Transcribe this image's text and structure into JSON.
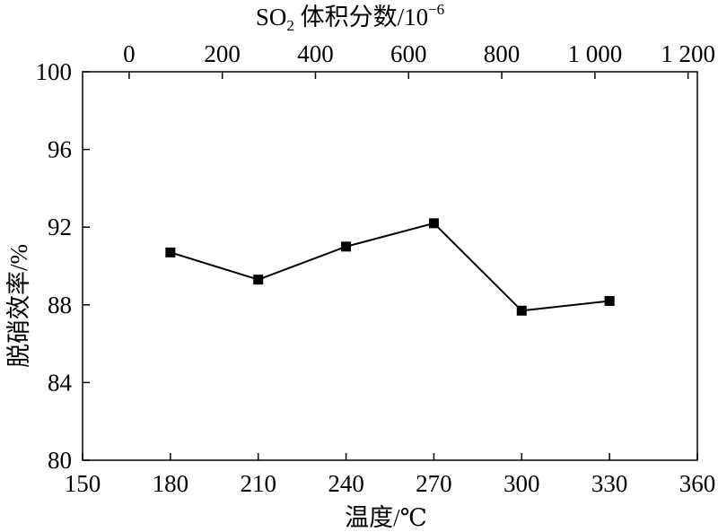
{
  "chart_data": {
    "type": "line",
    "xlabel": "温度/℃",
    "ylabel": "脱硝效率/%",
    "x2label_main": "SO",
    "x2label_sub": "2",
    "x2label_rest": " 体积分数/10",
    "x2label_sup": "−6",
    "xlim": [
      150,
      360
    ],
    "ylim": [
      80,
      100
    ],
    "x2lim": [
      -100,
      1220
    ],
    "xticks": [
      150,
      180,
      210,
      240,
      270,
      300,
      330,
      360
    ],
    "yticks": [
      80,
      84,
      88,
      92,
      96,
      100
    ],
    "x2ticks": [
      {
        "value": 0,
        "label": "0"
      },
      {
        "value": 200,
        "label": "200"
      },
      {
        "value": 400,
        "label": "400"
      },
      {
        "value": 600,
        "label": "600"
      },
      {
        "value": 800,
        "label": "800"
      },
      {
        "value": 1000,
        "label": "1 000"
      },
      {
        "value": 1200,
        "label": "1 200"
      }
    ],
    "grid": false,
    "series": [
      {
        "marker": "square",
        "color": "#000000",
        "x": [
          180,
          210,
          240,
          270,
          300,
          330
        ],
        "y": [
          90.7,
          89.3,
          91.0,
          92.2,
          87.7,
          88.2
        ]
      }
    ]
  }
}
